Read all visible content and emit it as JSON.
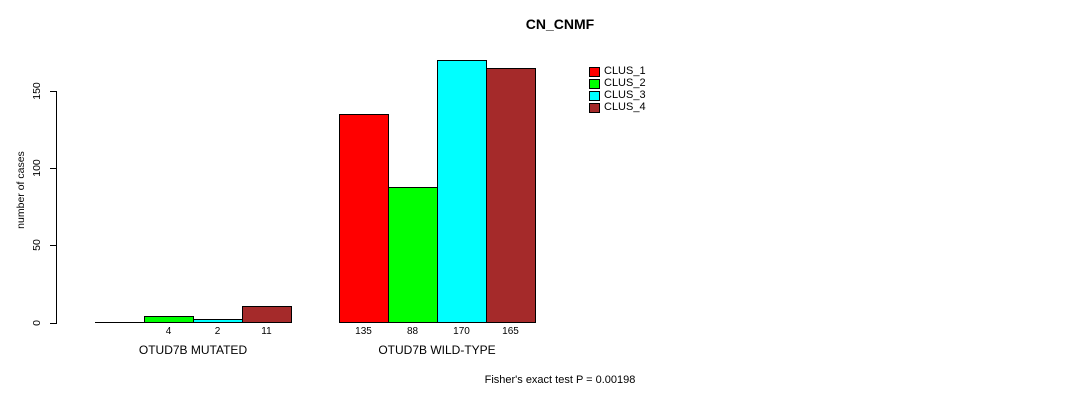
{
  "page": {
    "title": "CN_CNMF",
    "footer": "Fisher's exact test P = 0.00198"
  },
  "chart_data": {
    "type": "bar",
    "title": "CN_CNMF",
    "xlabel": "",
    "ylabel": "number of cases",
    "ylim": [
      0,
      175
    ],
    "yticks": [
      0,
      50,
      100,
      150
    ],
    "grid": false,
    "legend_position": "top-right-of-plot",
    "legend": [
      {
        "name": "CLUS_1",
        "color": "#FF0000"
      },
      {
        "name": "CLUS_2",
        "color": "#00FF00"
      },
      {
        "name": "CLUS_3",
        "color": "#00FFFF"
      },
      {
        "name": "CLUS_4",
        "color": "#A52A2A"
      }
    ],
    "categories": [
      "OTUD7B MUTATED",
      "OTUD7B WILD-TYPE"
    ],
    "series": [
      {
        "name": "CLUS_1",
        "color": "#FF0000",
        "values": [
          0,
          135
        ]
      },
      {
        "name": "CLUS_2",
        "color": "#00FF00",
        "values": [
          4,
          88
        ]
      },
      {
        "name": "CLUS_3",
        "color": "#00FFFF",
        "values": [
          2,
          170
        ]
      },
      {
        "name": "CLUS_4",
        "color": "#A52A2A",
        "values": [
          11,
          165
        ]
      }
    ],
    "bar_value_labels": [
      [
        "",
        "4",
        "2",
        "11"
      ],
      [
        "135",
        "88",
        "170",
        "165"
      ]
    ],
    "annotation": "Fisher's exact test P = 0.00198"
  }
}
